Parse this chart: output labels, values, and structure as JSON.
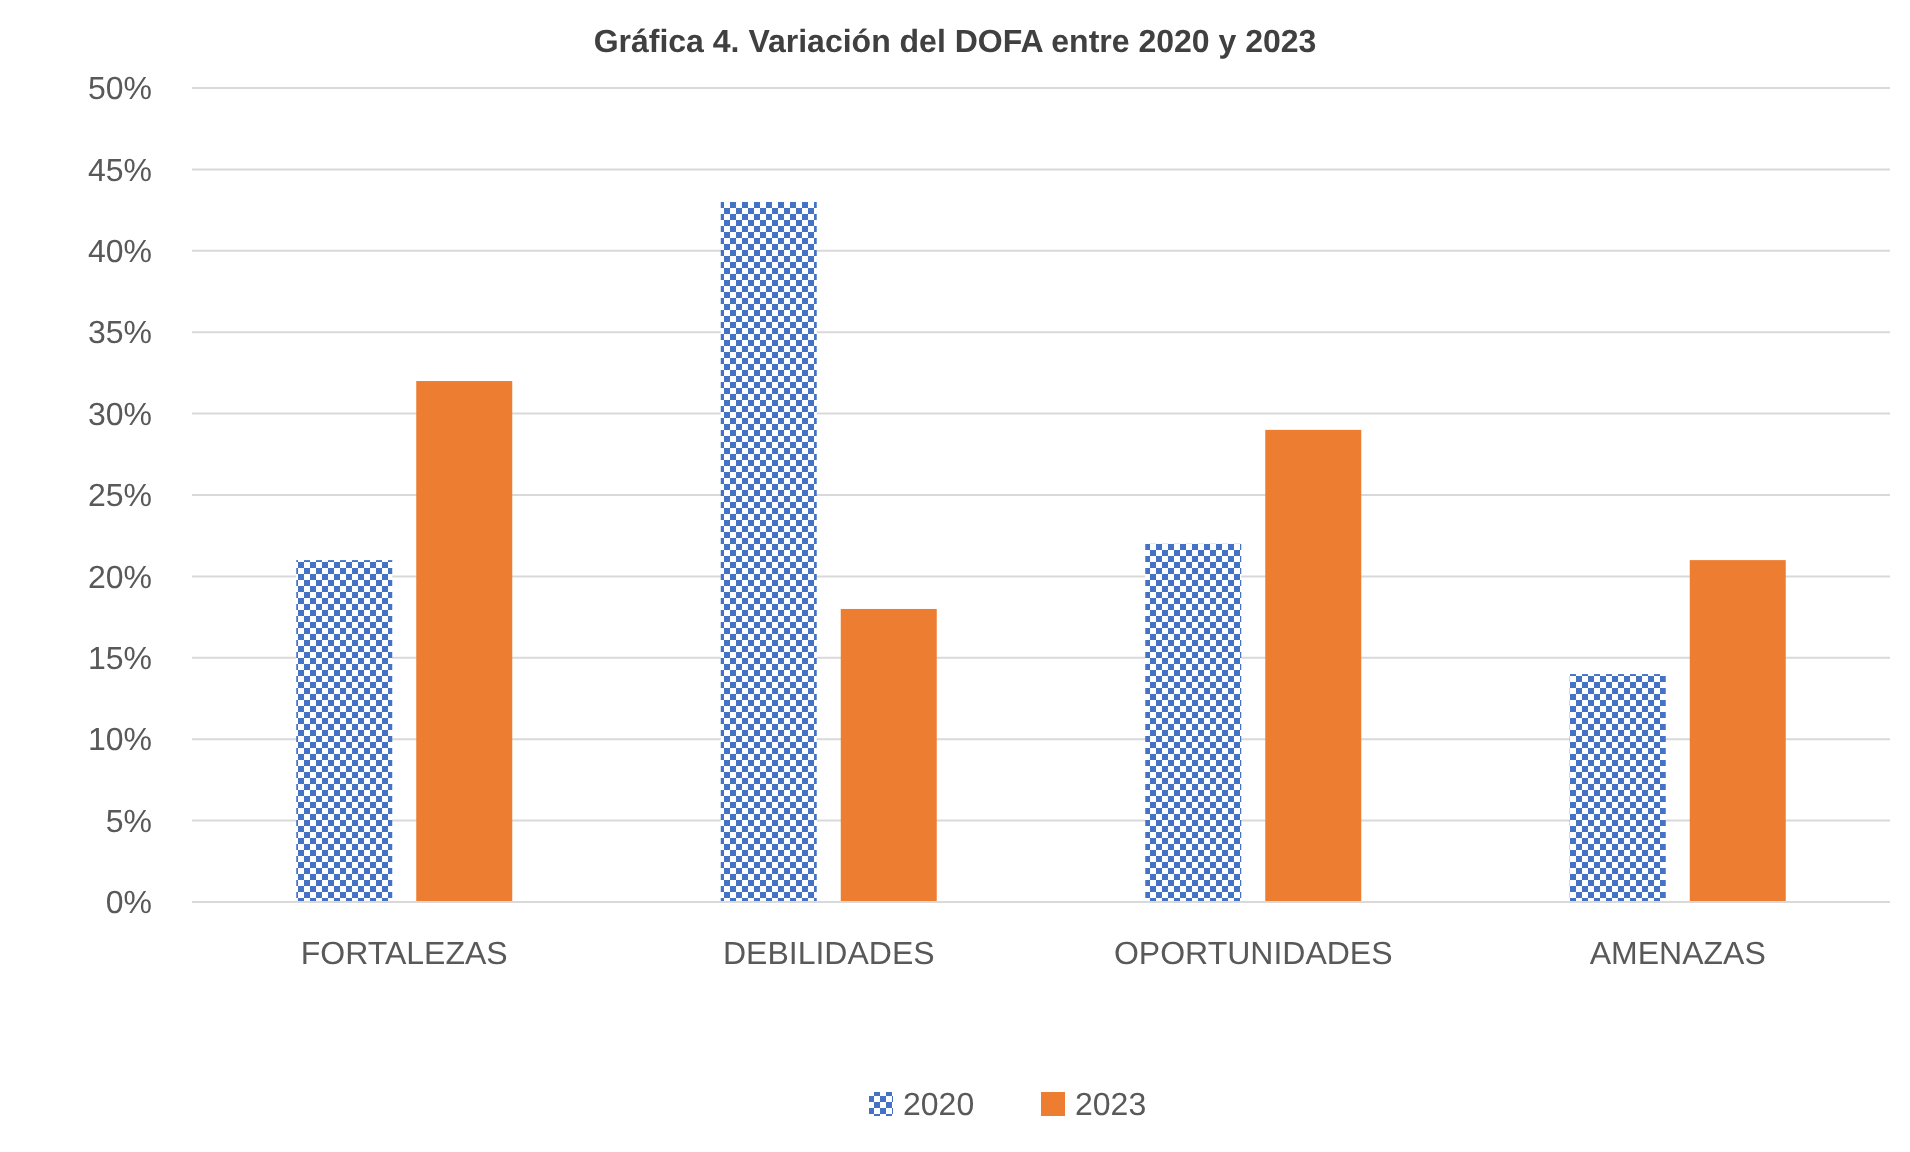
{
  "chart_data": {
    "type": "bar",
    "title": "Gráfica 4. Variación del DOFA entre 2020 y 2023",
    "categories": [
      "FORTALEZAS",
      "DEBILIDADES",
      "OPORTUNIDADES",
      "AMENAZAS"
    ],
    "series": [
      {
        "name": "2020",
        "color": "#4472c4",
        "values": [
          0.21,
          0.43,
          0.22,
          0.14
        ]
      },
      {
        "name": "2023",
        "color": "#ed7d31",
        "values": [
          0.32,
          0.18,
          0.29,
          0.21
        ]
      }
    ],
    "ylim": [
      0,
      0.5
    ],
    "yticks": [
      {
        "value": 0,
        "label": "0%"
      },
      {
        "value": 0.05,
        "label": "5%"
      },
      {
        "value": 0.1,
        "label": "10%"
      },
      {
        "value": 0.15,
        "label": "15%"
      },
      {
        "value": 0.2,
        "label": "20%"
      },
      {
        "value": 0.25,
        "label": "25%"
      },
      {
        "value": 0.3,
        "label": "30%"
      },
      {
        "value": 0.35,
        "label": "35%"
      },
      {
        "value": 0.4,
        "label": "40%"
      },
      {
        "value": 0.45,
        "label": "45%"
      },
      {
        "value": 0.5,
        "label": "50%"
      }
    ],
    "grid": "y",
    "legend": "bottom"
  }
}
